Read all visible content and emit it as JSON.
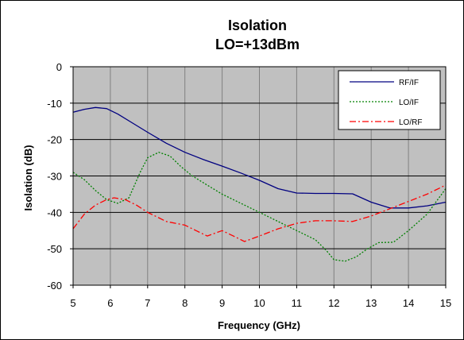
{
  "chart_data": {
    "type": "line",
    "title": "Isolation",
    "subtitle": "LO=+13dBm",
    "xlabel": "Frequency (GHz)",
    "ylabel": "Isolation (dB)",
    "xlim": [
      5,
      15
    ],
    "ylim": [
      -60,
      0
    ],
    "xticks": [
      "5",
      "6",
      "7",
      "8",
      "9",
      "10",
      "11",
      "12",
      "13",
      "14",
      "15"
    ],
    "yticks": [
      "0",
      "-10",
      "-20",
      "-30",
      "-40",
      "-50",
      "-60"
    ],
    "grid": true,
    "legend_position": "top-right",
    "plot_background": "#c0c0c0",
    "series": [
      {
        "name": "RF/IF",
        "color": "#000080",
        "dash": "solid",
        "x": [
          5,
          5.3,
          5.6,
          5.9,
          6.2,
          6.6,
          7,
          7.5,
          8,
          8.5,
          9,
          9.5,
          10,
          10.5,
          11,
          11.5,
          12,
          12.5,
          13,
          13.5,
          14,
          14.5,
          15
        ],
        "y": [
          -12.5,
          -11.7,
          -11.2,
          -11.5,
          -13,
          -15.5,
          -18,
          -21,
          -23.5,
          -25.5,
          -27.3,
          -29.2,
          -31.2,
          -33.5,
          -34.7,
          -34.8,
          -34.8,
          -34.9,
          -37.2,
          -38.8,
          -38.8,
          -38.2,
          -37.2
        ]
      },
      {
        "name": "LO/IF",
        "color": "#008000",
        "dash": "dotted",
        "x": [
          5,
          5.3,
          5.6,
          5.9,
          6.2,
          6.5,
          6.8,
          7,
          7.3,
          7.6,
          7.9,
          8.2,
          8.6,
          9,
          9.5,
          10,
          10.5,
          11,
          11.5,
          11.8,
          12,
          12.3,
          12.6,
          12.9,
          13.2,
          13.6,
          14,
          14.5,
          15
        ],
        "y": [
          -29,
          -31,
          -34,
          -36.5,
          -37.5,
          -36,
          -29,
          -25,
          -23.5,
          -24.5,
          -27.5,
          -30,
          -32.5,
          -35,
          -37.5,
          -40,
          -42.5,
          -45,
          -47.5,
          -50.5,
          -53,
          -53.4,
          -52.2,
          -50,
          -48.3,
          -48.2,
          -45,
          -40.5,
          -33.5
        ]
      },
      {
        "name": "LO/RF",
        "color": "#ff0000",
        "dash": "dashdot",
        "x": [
          5,
          5.3,
          5.6,
          5.9,
          6.1,
          6.4,
          6.7,
          7,
          7.5,
          8,
          8.3,
          8.6,
          9,
          9.3,
          9.6,
          10,
          10.5,
          11,
          11.5,
          12,
          12.5,
          13,
          13.5,
          14,
          14.5,
          15
        ],
        "y": [
          -44.5,
          -40.5,
          -38,
          -36.5,
          -36,
          -36.5,
          -38,
          -40,
          -42.5,
          -43.5,
          -45,
          -46.5,
          -45,
          -46.5,
          -48,
          -46.5,
          -44.5,
          -43,
          -42.3,
          -42.3,
          -42.5,
          -41,
          -39,
          -37,
          -35,
          -32.5
        ]
      }
    ]
  }
}
